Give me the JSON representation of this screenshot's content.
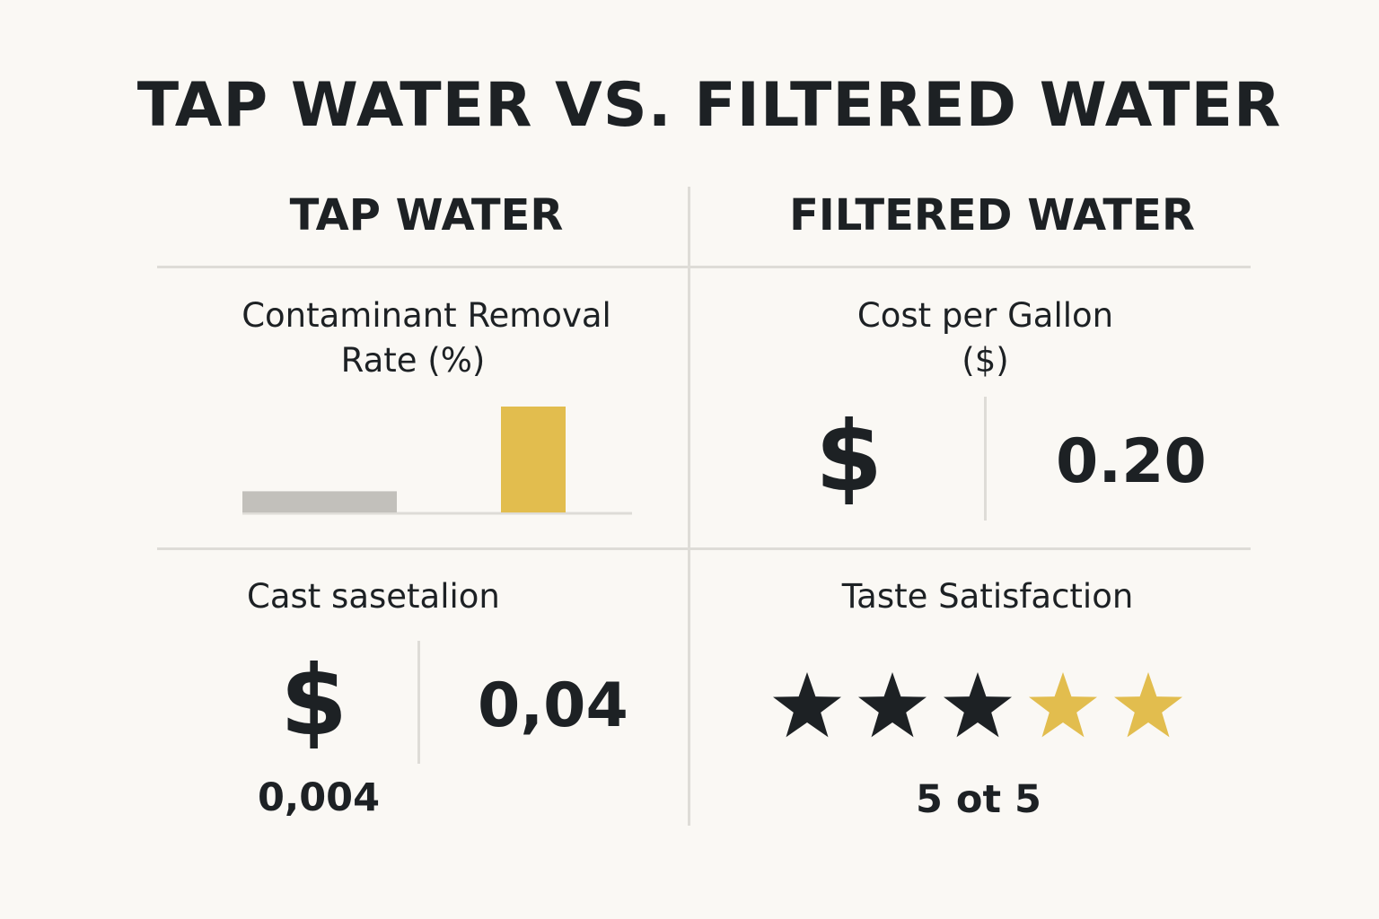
{
  "title": "TAP WATER VS. FILTERED WATER",
  "columns": {
    "left": "TAP WATER",
    "right": "FILTERED WATER"
  },
  "panels": {
    "contaminant": {
      "label_line1": "Contaminant Removal",
      "label_line2": "Rate (%)"
    },
    "cost": {
      "label_line1": "Cost per Gallon",
      "label_line2": "($)",
      "symbol": "$",
      "value": "0.20"
    },
    "cast": {
      "label": "Cast sasetalion",
      "symbol": "$",
      "value": "0,04",
      "sub_value": "0,004"
    },
    "taste": {
      "label": "Taste Satisfaction",
      "caption": "5 ot 5"
    }
  },
  "colors": {
    "accent_gold": "#e2bd4e",
    "bar_gray": "#c2c0bb",
    "text_dark": "#1d2124"
  },
  "chart_data": [
    {
      "type": "bar",
      "categories": [
        "",
        ""
      ],
      "values": [
        0.2,
        1.0
      ],
      "colors": [
        "#c2c0bb",
        "#e2bd4e"
      ],
      "title": "Contaminant Removal Rate (%)",
      "ylim": [
        0,
        1
      ],
      "grid": false
    }
  ],
  "rating": {
    "count": 5,
    "dark_count": 3,
    "dark_color": "#1d2124",
    "gold_color": "#e2bd4e"
  }
}
